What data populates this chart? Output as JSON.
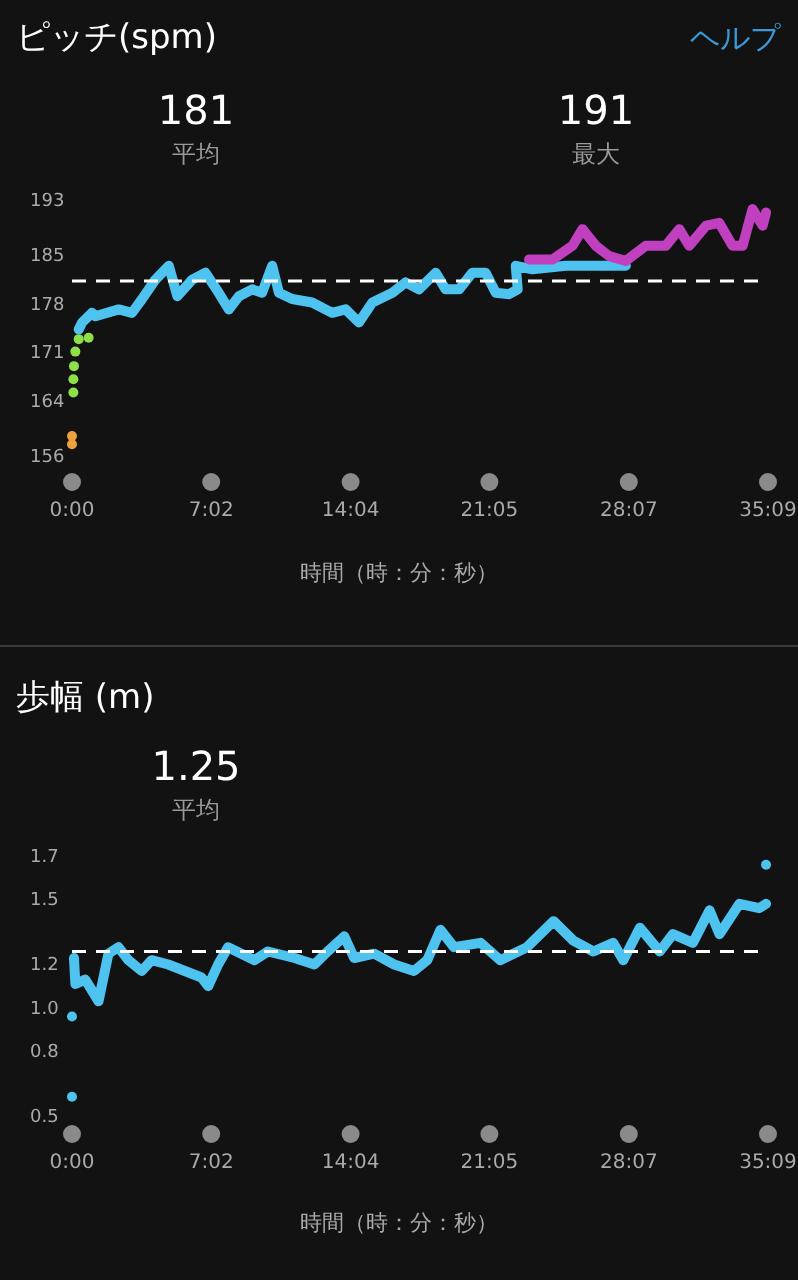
{
  "chart_data": [
    {
      "type": "line",
      "title": "ピッチ(spm)",
      "xlabel": "時間（時：分：秒）",
      "annotations": [
        "ヘルプ",
        "181",
        "平均",
        "191",
        "最大"
      ],
      "xlim": [
        0,
        35.15
      ],
      "xticks": [
        {
          "value": 0,
          "label": "0:00"
        },
        {
          "value": 7.03,
          "label": "7:02"
        },
        {
          "value": 14.07,
          "label": "14:04"
        },
        {
          "value": 21.08,
          "label": "21:05"
        },
        {
          "value": 28.12,
          "label": "28:07"
        },
        {
          "value": 35.15,
          "label": "35:09"
        }
      ],
      "ylim": [
        156,
        193
      ],
      "yticks": [
        156,
        164,
        171,
        178,
        185,
        193
      ],
      "ref_lines": [
        {
          "axis": "y",
          "value": 181,
          "color": "#ffffff",
          "line_style": "dashed"
        }
      ],
      "series": [
        {
          "type": "scatter",
          "color": "#f0a040",
          "x": [
            0,
            0
          ],
          "values": [
            158.6,
            157.4
          ]
        },
        {
          "type": "scatter",
          "color": "#8ee04a",
          "x": [
            0.07,
            0.07,
            0.1,
            0.17,
            0.34,
            0.84
          ],
          "values": [
            164.9,
            166.8,
            168.7,
            170.8,
            172.6,
            172.8
          ]
        },
        {
          "color": "#4fc3f0",
          "x": [
            0.34,
            0.51,
            1.01,
            1.18,
            2.36,
            3.03,
            3.54,
            4.21,
            4.89,
            5.32,
            6.07,
            6.74,
            7.41,
            7.92,
            8.43,
            9.1,
            9.6,
            10.11,
            10.45,
            11.12,
            12.13,
            13.14,
            13.82,
            14.49,
            15.17,
            16.18,
            16.85,
            17.52,
            18.37,
            18.87,
            19.55,
            20.22,
            20.89,
            21.4,
            22.07,
            22.51,
            22.41,
            23.25,
            24.94,
            27.3,
            27.97
          ],
          "values": [
            174.0,
            175.0,
            176.4,
            175.9,
            176.9,
            176.4,
            178.4,
            181.2,
            183.2,
            178.8,
            181.2,
            182.2,
            179.3,
            176.9,
            178.8,
            179.8,
            179.3,
            183.2,
            179.3,
            178.4,
            177.9,
            176.4,
            176.9,
            175.0,
            177.9,
            179.3,
            180.8,
            179.8,
            182.2,
            179.8,
            179.8,
            182.2,
            182.2,
            179.3,
            179.1,
            179.8,
            183.2,
            182.7,
            183.2,
            183.2,
            183.2
          ]
        },
        {
          "color": "#c040c0",
          "x": [
            23.08,
            24.26,
            25.28,
            25.78,
            26.45,
            27.13,
            27.97,
            28.98,
            29.99,
            30.67,
            31.17,
            32.02,
            32.69,
            33.36,
            33.87,
            34.37,
            34.88,
            35.05
          ],
          "values": [
            184.1,
            184.1,
            186.1,
            188.5,
            186.1,
            184.6,
            183.9,
            186.1,
            186.1,
            188.5,
            186.1,
            189.0,
            189.4,
            186.1,
            186.1,
            191.4,
            189.0,
            190.9
          ]
        }
      ]
    },
    {
      "type": "line",
      "title": "歩幅 (m)",
      "xlabel": "時間（時：分：秒）",
      "annotations": [
        "1.25",
        "平均"
      ],
      "xlim": [
        0,
        35.15
      ],
      "xticks": [
        {
          "value": 0,
          "label": "0:00"
        },
        {
          "value": 7.03,
          "label": "7:02"
        },
        {
          "value": 14.07,
          "label": "14:04"
        },
        {
          "value": 21.08,
          "label": "21:05"
        },
        {
          "value": 28.12,
          "label": "28:07"
        },
        {
          "value": 35.15,
          "label": "35:09"
        }
      ],
      "ylim": [
        0.5,
        1.7
      ],
      "yticks": [
        0.5,
        0.8,
        {
          "value": 1.0,
          "label": "1.0"
        },
        1.2,
        1.5,
        1.7
      ],
      "ref_lines": [
        {
          "axis": "y",
          "value": 1.25,
          "color": "#ffffff",
          "line_style": "dashed"
        }
      ],
      "series": [
        {
          "type": "scatter",
          "color": "#4fc3f0",
          "x": [
            0,
            0,
            35.05
          ],
          "values": [
            0.58,
            0.95,
            1.65
          ]
        },
        {
          "color": "#4fc3f0",
          "x": [
            0.1,
            0.17,
            0.67,
            1.01,
            1.34,
            1.84,
            2.35,
            2.85,
            3.52,
            4.02,
            4.86,
            5.7,
            6.54,
            6.88,
            7.38,
            7.88,
            9.22,
            9.89,
            11.24,
            12.24,
            12.91,
            13.75,
            14.25,
            15.26,
            16.27,
            17.27,
            17.94,
            18.61,
            19.29,
            20.63,
            21.63,
            22.98,
            24.32,
            25.32,
            26.33,
            27.33,
            27.84,
            28.68,
            29.68,
            30.35,
            31.36,
            32.2,
            32.7,
            33.71,
            34.71,
            35.05
          ],
          "values": [
            1.22,
            1.1,
            1.12,
            1.07,
            1.02,
            1.24,
            1.27,
            1.21,
            1.16,
            1.21,
            1.19,
            1.16,
            1.13,
            1.09,
            1.19,
            1.27,
            1.21,
            1.25,
            1.22,
            1.19,
            1.25,
            1.32,
            1.22,
            1.24,
            1.19,
            1.16,
            1.21,
            1.35,
            1.27,
            1.29,
            1.21,
            1.27,
            1.39,
            1.3,
            1.25,
            1.29,
            1.21,
            1.36,
            1.25,
            1.33,
            1.29,
            1.44,
            1.33,
            1.47,
            1.45,
            1.47
          ]
        }
      ]
    }
  ]
}
